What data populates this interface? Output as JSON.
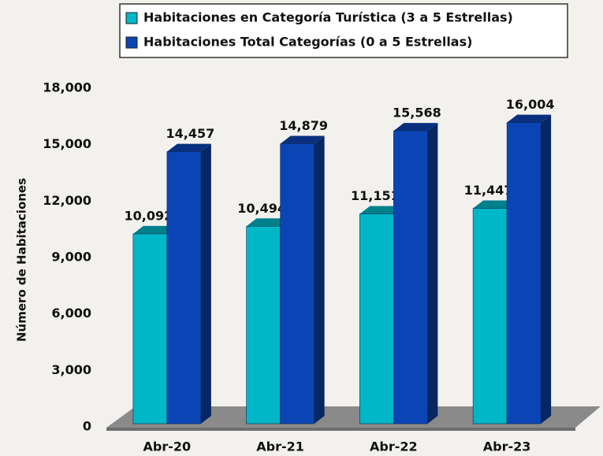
{
  "chart_data": {
    "type": "bar",
    "y_label": "Número de Habitaciones",
    "categories": [
      "Abr-20",
      "Abr-21",
      "Abr-22",
      "Abr-23"
    ],
    "series": [
      {
        "name": "Habitaciones en Categoría Turística (3 a 5 Estrellas)",
        "color": "#00b7c7",
        "values": [
          10092,
          10494,
          11151,
          11447
        ],
        "value_labels": [
          "10,092",
          "10,494",
          "11,151",
          "11,447"
        ]
      },
      {
        "name": "Habitaciones Total Categorías (0 a 5 Estrellas)",
        "color": "#0b45b5",
        "values": [
          14457,
          14879,
          15568,
          16004
        ],
        "value_labels": [
          "14,457",
          "14,879",
          "15,568",
          "16,004"
        ]
      }
    ],
    "ylim": [
      0,
      18000
    ],
    "yticks": [
      0,
      {
        "value": 3000,
        "label": "3,000"
      },
      {
        "value": 6000,
        "label": "6,000"
      },
      {
        "value": 9000,
        "label": "9,000"
      },
      {
        "value": 12000,
        "label": "12,000"
      },
      {
        "value": 15000,
        "label": "15,000"
      },
      {
        "value": 18000,
        "label": "18,000"
      }
    ],
    "grid": false,
    "legend": "top"
  }
}
